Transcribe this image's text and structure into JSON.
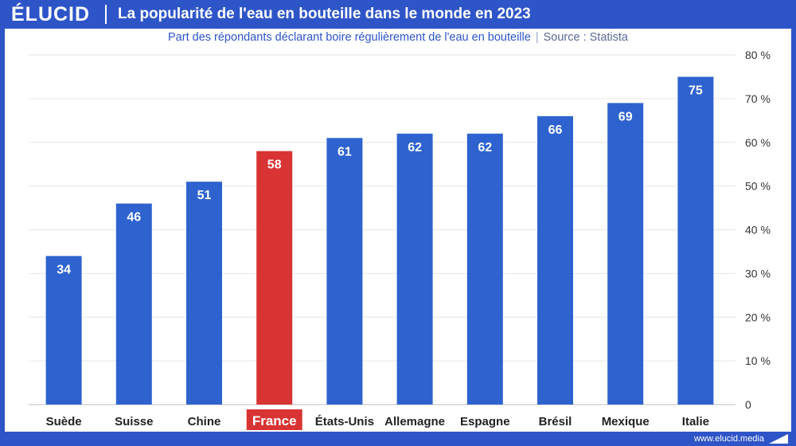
{
  "brand": {
    "logo": "ÉLUCID",
    "url": "www.elucid.media"
  },
  "colors": {
    "bar": "#2e63cf",
    "highlight": "#d93434",
    "frame": "#2e55c8"
  },
  "chart_data": {
    "type": "bar",
    "title": "La popularité de l'eau en bouteille dans le monde en 2023",
    "subtitle": "Part des répondants déclarant boire régulièrement de l'eau en bouteille",
    "source": "Source : Statista",
    "categories": [
      "Suède",
      "Suisse",
      "Chine",
      "France",
      "États-Unis",
      "Allemagne",
      "Espagne",
      "Brésil",
      "Mexique",
      "Italie"
    ],
    "values": [
      34,
      46,
      51,
      58,
      61,
      62,
      62,
      66,
      69,
      75
    ],
    "highlighted_category": "France",
    "ylim": [
      0,
      80
    ],
    "yticks": [
      0,
      10,
      20,
      30,
      40,
      50,
      60,
      70,
      80
    ],
    "ytick_labels": [
      "0",
      "10 %",
      "20 %",
      "30 %",
      "40 %",
      "50 %",
      "60 %",
      "70 %",
      "80 %"
    ],
    "y_axis_position": "right",
    "grid": true,
    "xlabel": "",
    "ylabel": ""
  }
}
